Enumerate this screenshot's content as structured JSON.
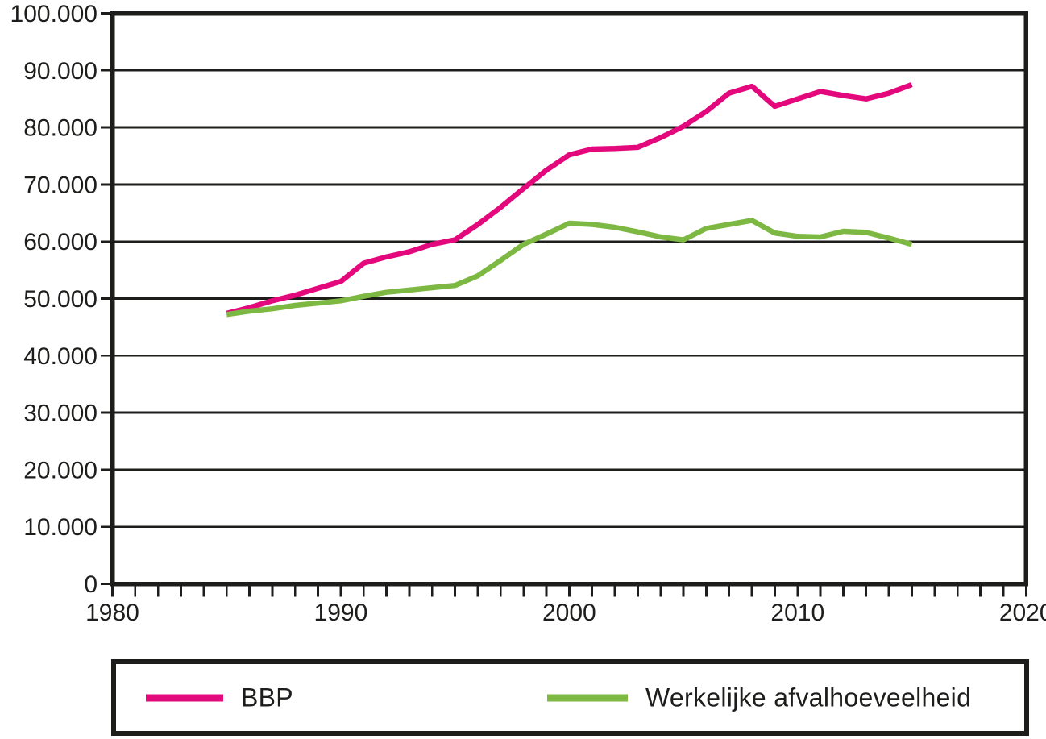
{
  "chart_data": {
    "type": "line",
    "x": [
      1985,
      1986,
      1987,
      1988,
      1989,
      1990,
      1991,
      1992,
      1993,
      1994,
      1995,
      1996,
      1997,
      1998,
      1999,
      2000,
      2001,
      2002,
      2003,
      2004,
      2005,
      2006,
      2007,
      2008,
      2009,
      2010,
      2011,
      2012,
      2013,
      2014,
      2015
    ],
    "series": [
      {
        "name": "BBP",
        "color": "#e4087d",
        "values": [
          47400,
          48400,
          49600,
          50600,
          51800,
          53000,
          56200,
          57300,
          58200,
          59500,
          60300,
          63000,
          66000,
          69300,
          72500,
          75200,
          76200,
          76300,
          76500,
          78200,
          80200,
          82800,
          86000,
          87200,
          83700,
          85000,
          86300,
          85600,
          85000,
          86000,
          87500
        ]
      },
      {
        "name": "Werkelijke afvalhoeveelheid",
        "color": "#7db843",
        "values": [
          47200,
          47800,
          48200,
          48800,
          49200,
          49600,
          50400,
          51100,
          51500,
          51900,
          52300,
          54000,
          56700,
          59500,
          61300,
          63200,
          63000,
          62500,
          61700,
          60800,
          60300,
          62300,
          63000,
          63700,
          61500,
          60900,
          60800,
          61800,
          61600,
          60600,
          59500
        ]
      }
    ],
    "title": "",
    "xlabel": "",
    "ylabel": "",
    "xlim": [
      1980,
      2020
    ],
    "ylim": [
      0,
      100000
    ],
    "x_tick_values": [
      1980,
      1990,
      2000,
      2010,
      2020
    ],
    "x_tick_labels": [
      "1980",
      "1990",
      "2000",
      "2010",
      "2020"
    ],
    "x_minor_tick_step_years": 1,
    "y_tick_step": 10000,
    "y_tick_labels": [
      "0",
      "10.000",
      "20.000",
      "30.000",
      "40.000",
      "50.000",
      "60.000",
      "70.000",
      "80.000",
      "90.000",
      "100.000"
    ],
    "grid": "horizontal-on",
    "legend_position": "bottom-boxed"
  },
  "legend": {
    "items": [
      {
        "label": "BBP",
        "color": "#e4087d"
      },
      {
        "label": "Werkelijke afvalhoeveelheid",
        "color": "#7db843"
      }
    ]
  },
  "colors": {
    "axis_and_text": "#1d1d1b",
    "background": "#ffffff",
    "bbp_line": "#e4087d",
    "waste_line": "#7db843"
  }
}
